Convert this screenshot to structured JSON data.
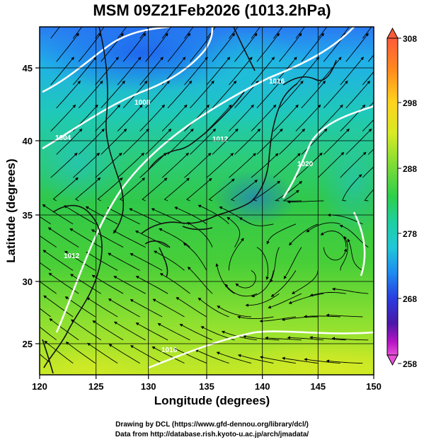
{
  "title": "MSM 09Z21Feb2026 (1013.2hPa)",
  "axes": {
    "xlabel": "Longitude (degrees)",
    "ylabel": "Latitude  (degrees)",
    "x_ticks": [
      "120",
      "125",
      "130",
      "135",
      "140",
      "145",
      "150"
    ],
    "y_ticks": [
      "25",
      "30",
      "35",
      "40",
      "45"
    ]
  },
  "map": {
    "lon_range": [
      120,
      150
    ],
    "lat_range": [
      22.4,
      47.6
    ],
    "fill_variable": "temperature (K)",
    "contour_color": "#ffffff",
    "grid": true,
    "vectors": "streamlines (wind)",
    "contour_labels": [
      "1004",
      "1008",
      "1012",
      "1016",
      "1020",
      "1016",
      "1012"
    ]
  },
  "colorbar": {
    "ticks": [
      "308",
      "298",
      "288",
      "278",
      "268",
      "258"
    ],
    "colors": [
      "#ff4a3a",
      "#ff8a1e",
      "#ffd21e",
      "#d8ea24",
      "#8fe03a",
      "#3ed03c",
      "#1fcf9a",
      "#20c8d8",
      "#1f8ff0",
      "#2a3ee0",
      "#3a1aa8",
      "#9a12c0",
      "#e040d0"
    ]
  },
  "credits": {
    "line1": "Drawing by DCL (https://www.gfd-dennou.org/library/dcl/)",
    "line2": "Data from http://database.rish.kyoto-u.ac.jp/arch/jmadata/"
  }
}
